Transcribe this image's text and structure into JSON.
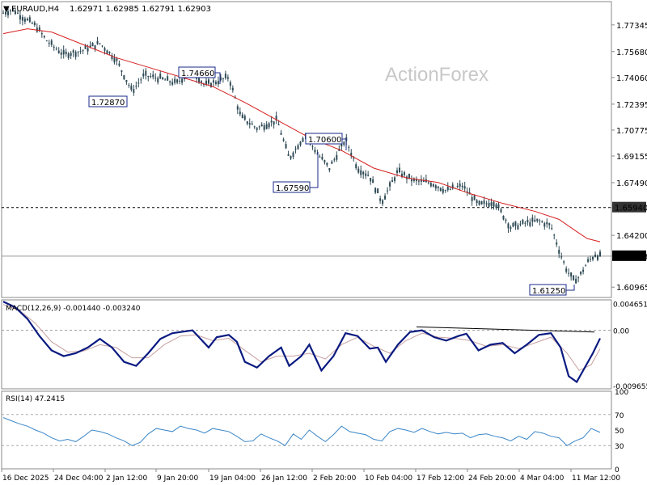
{
  "header": {
    "symbol": "EURAUD,H4",
    "ohlc": "1.62971 1.62985 1.62791 1.62903"
  },
  "watermark": "ActionForex",
  "colors": {
    "candle": "#2e4a55",
    "ma": "#d62020",
    "macd": "#0a1a80",
    "signal": "#c8a0a0",
    "rsi": "#3a86c8",
    "grid": "#888888"
  },
  "chart_data": [
    {
      "type": "candlestick",
      "title": "EURAUD,H4",
      "xlabel": "",
      "ylabel": "",
      "ylim": [
        1.6032,
        1.788
      ],
      "y_ticks": [
        "1.77345",
        "1.75680",
        "1.74060",
        "1.72395",
        "1.70775",
        "1.69155",
        "1.67490",
        "1.65940",
        "1.64200",
        "1.62903",
        "1.60965"
      ],
      "x_ticks": [
        "16 Dec 2025",
        "24 Dec 04:00",
        "2 Jan 12:00",
        "9 Jan 20:00",
        "19 Jan 04:00",
        "26 Jan 12:00",
        "2 Feb 20:00",
        "10 Feb 04:00",
        "17 Feb 12:00",
        "24 Feb 20:00",
        "4 Mar 04:00",
        "11 Mar 12:00"
      ],
      "horizontal_line": {
        "value": 1.6594,
        "label": "1.65940",
        "style": "dashed"
      },
      "current_price": {
        "value": 1.62903,
        "label": "1.62903"
      },
      "annotations": [
        {
          "label": "1.72870",
          "value": 1.7287
        },
        {
          "label": "1.74660",
          "value": 1.7466
        },
        {
          "label": "1.70600",
          "value": 1.706
        },
        {
          "label": "1.67590",
          "value": 1.6759
        },
        {
          "label": "1.61250",
          "value": 1.6125
        }
      ],
      "close_path": [
        [
          0,
          1.781
        ],
        [
          12,
          1.783
        ],
        [
          25,
          1.778
        ],
        [
          40,
          1.773
        ],
        [
          55,
          1.763
        ],
        [
          75,
          1.755
        ],
        [
          95,
          1.757
        ],
        [
          120,
          1.762
        ],
        [
          140,
          1.752
        ],
        [
          160,
          1.732
        ],
        [
          175,
          1.742
        ],
        [
          195,
          1.74
        ],
        [
          215,
          1.737
        ],
        [
          235,
          1.745
        ],
        [
          250,
          1.736
        ],
        [
          265,
          1.738
        ],
        [
          280,
          1.741
        ],
        [
          295,
          1.716
        ],
        [
          315,
          1.709
        ],
        [
          340,
          1.714
        ],
        [
          355,
          1.69
        ],
        [
          375,
          1.705
        ],
        [
          390,
          1.693
        ],
        [
          405,
          1.684
        ],
        [
          425,
          1.702
        ],
        [
          440,
          1.684
        ],
        [
          455,
          1.679
        ],
        [
          470,
          1.663
        ],
        [
          490,
          1.682
        ],
        [
          510,
          1.676
        ],
        [
          530,
          1.675
        ],
        [
          550,
          1.67
        ],
        [
          570,
          1.673
        ],
        [
          590,
          1.661
        ],
        [
          610,
          1.663
        ],
        [
          630,
          1.647
        ],
        [
          650,
          1.65
        ],
        [
          665,
          1.651
        ],
        [
          680,
          1.648
        ],
        [
          692,
          1.63
        ],
        [
          700,
          1.62
        ],
        [
          708,
          1.614
        ],
        [
          715,
          1.616
        ],
        [
          725,
          1.625
        ],
        [
          735,
          1.63
        ],
        [
          741,
          1.629
        ]
      ],
      "ma_path": [
        [
          0,
          1.768
        ],
        [
          30,
          1.771
        ],
        [
          60,
          1.769
        ],
        [
          100,
          1.761
        ],
        [
          140,
          1.753
        ],
        [
          180,
          1.747
        ],
        [
          220,
          1.741
        ],
        [
          260,
          1.735
        ],
        [
          300,
          1.725
        ],
        [
          340,
          1.714
        ],
        [
          380,
          1.703
        ],
        [
          420,
          1.695
        ],
        [
          460,
          1.684
        ],
        [
          500,
          1.678
        ],
        [
          540,
          1.675
        ],
        [
          580,
          1.668
        ],
        [
          620,
          1.662
        ],
        [
          660,
          1.657
        ],
        [
          690,
          1.652
        ],
        [
          710,
          1.645
        ],
        [
          725,
          1.64
        ],
        [
          741,
          1.638
        ]
      ]
    },
    {
      "type": "line",
      "title": "MACD(12,26,9) -0.001440 -0.003240",
      "xlabel": "",
      "ylabel": "",
      "ylim": [
        -0.0102,
        0.0053
      ],
      "y_ticks": [
        "0.004651",
        "0.00",
        "-0.009655"
      ],
      "series": [
        {
          "values": [
            [
              0,
              0.005
            ],
            [
              15,
              0.004
            ],
            [
              30,
              0.002
            ],
            [
              45,
              -0.001
            ],
            [
              60,
              -0.0035
            ],
            [
              75,
              -0.0045
            ],
            [
              90,
              -0.004
            ],
            [
              105,
              -0.003
            ],
            [
              120,
              -0.0015
            ],
            [
              135,
              -0.003
            ],
            [
              150,
              -0.0055
            ],
            [
              165,
              -0.0062
            ],
            [
              180,
              -0.004
            ],
            [
              195,
              -0.0015
            ],
            [
              210,
              -0.0005
            ],
            [
              225,
              -0.0002
            ],
            [
              235,
              0.0
            ],
            [
              245,
              -0.0015
            ],
            [
              255,
              -0.003
            ],
            [
              265,
              -0.0012
            ],
            [
              280,
              -0.0008
            ],
            [
              290,
              -0.002
            ],
            [
              300,
              -0.0055
            ],
            [
              315,
              -0.0065
            ],
            [
              330,
              -0.0045
            ],
            [
              345,
              -0.003
            ],
            [
              355,
              -0.0062
            ],
            [
              370,
              -0.0045
            ],
            [
              380,
              -0.0025
            ],
            [
              395,
              -0.007
            ],
            [
              410,
              -0.0045
            ],
            [
              425,
              -0.0005
            ],
            [
              440,
              -0.001
            ],
            [
              455,
              -0.0032
            ],
            [
              465,
              -0.003
            ],
            [
              475,
              -0.0055
            ],
            [
              490,
              -0.0025
            ],
            [
              505,
              -0.0003
            ],
            [
              520,
              0.0
            ],
            [
              535,
              -0.0012
            ],
            [
              550,
              -0.0018
            ],
            [
              565,
              -0.001
            ],
            [
              575,
              -0.0006
            ],
            [
              590,
              -0.0035
            ],
            [
              605,
              -0.0025
            ],
            [
              620,
              -0.0022
            ],
            [
              635,
              -0.004
            ],
            [
              650,
              -0.0025
            ],
            [
              665,
              -0.0008
            ],
            [
              680,
              -0.0005
            ],
            [
              692,
              -0.003
            ],
            [
              702,
              -0.008
            ],
            [
              712,
              -0.009
            ],
            [
              722,
              -0.0065
            ],
            [
              732,
              -0.004
            ],
            [
              741,
              -0.0014
            ]
          ]
        },
        {
          "values": [
            [
              0,
              0.0045
            ],
            [
              20,
              0.0035
            ],
            [
              40,
              0.0012
            ],
            [
              60,
              -0.002
            ],
            [
              80,
              -0.0038
            ],
            [
              100,
              -0.0036
            ],
            [
              120,
              -0.0025
            ],
            [
              140,
              -0.003
            ],
            [
              160,
              -0.0048
            ],
            [
              180,
              -0.0048
            ],
            [
              200,
              -0.0025
            ],
            [
              220,
              -0.001
            ],
            [
              240,
              -0.0008
            ],
            [
              260,
              -0.0018
            ],
            [
              280,
              -0.0014
            ],
            [
              300,
              -0.0035
            ],
            [
              320,
              -0.0055
            ],
            [
              340,
              -0.0045
            ],
            [
              360,
              -0.0045
            ],
            [
              380,
              -0.004
            ],
            [
              400,
              -0.005
            ],
            [
              420,
              -0.0025
            ],
            [
              440,
              -0.0012
            ],
            [
              460,
              -0.0028
            ],
            [
              480,
              -0.004
            ],
            [
              500,
              -0.0018
            ],
            [
              520,
              -0.0005
            ],
            [
              540,
              -0.0012
            ],
            [
              560,
              -0.0014
            ],
            [
              580,
              -0.0018
            ],
            [
              600,
              -0.0028
            ],
            [
              620,
              -0.0025
            ],
            [
              640,
              -0.0032
            ],
            [
              660,
              -0.0022
            ],
            [
              680,
              -0.0012
            ],
            [
              700,
              -0.004
            ],
            [
              715,
              -0.007
            ],
            [
              730,
              -0.006
            ],
            [
              741,
              -0.0032
            ]
          ]
        }
      ],
      "reference_line": {
        "value": 0.0
      }
    },
    {
      "type": "line",
      "title": "RSI(14) 47.2415",
      "xlabel": "",
      "ylabel": "",
      "ylim": [
        0,
        100
      ],
      "y_ticks": [
        "100",
        "70",
        "50",
        "30",
        "0"
      ],
      "levels": [
        70,
        30
      ],
      "series": [
        {
          "values": [
            [
              0,
              66
            ],
            [
              10,
              62
            ],
            [
              20,
              58
            ],
            [
              30,
              55
            ],
            [
              40,
              50
            ],
            [
              50,
              46
            ],
            [
              60,
              40
            ],
            [
              70,
              36
            ],
            [
              80,
              38
            ],
            [
              90,
              35
            ],
            [
              100,
              42
            ],
            [
              110,
              50
            ],
            [
              120,
              48
            ],
            [
              130,
              45
            ],
            [
              140,
              40
            ],
            [
              150,
              36
            ],
            [
              160,
              30
            ],
            [
              170,
              34
            ],
            [
              180,
              45
            ],
            [
              190,
              52
            ],
            [
              200,
              50
            ],
            [
              210,
              48
            ],
            [
              220,
              55
            ],
            [
              230,
              52
            ],
            [
              240,
              50
            ],
            [
              250,
              46
            ],
            [
              260,
              52
            ],
            [
              270,
              50
            ],
            [
              280,
              48
            ],
            [
              290,
              42
            ],
            [
              300,
              35
            ],
            [
              310,
              36
            ],
            [
              320,
              45
            ],
            [
              330,
              40
            ],
            [
              340,
              36
            ],
            [
              350,
              30
            ],
            [
              360,
              45
            ],
            [
              370,
              38
            ],
            [
              380,
              50
            ],
            [
              390,
              42
            ],
            [
              400,
              35
            ],
            [
              410,
              44
            ],
            [
              420,
              55
            ],
            [
              430,
              48
            ],
            [
              440,
              46
            ],
            [
              450,
              44
            ],
            [
              460,
              38
            ],
            [
              470,
              36
            ],
            [
              480,
              48
            ],
            [
              490,
              52
            ],
            [
              500,
              50
            ],
            [
              510,
              47
            ],
            [
              520,
              52
            ],
            [
              530,
              48
            ],
            [
              540,
              45
            ],
            [
              550,
              47
            ],
            [
              560,
              45
            ],
            [
              570,
              46
            ],
            [
              580,
              40
            ],
            [
              590,
              44
            ],
            [
              600,
              45
            ],
            [
              610,
              42
            ],
            [
              620,
              40
            ],
            [
              630,
              36
            ],
            [
              640,
              42
            ],
            [
              650,
              38
            ],
            [
              660,
              48
            ],
            [
              670,
              46
            ],
            [
              680,
              42
            ],
            [
              690,
              40
            ],
            [
              700,
              30
            ],
            [
              710,
              36
            ],
            [
              720,
              40
            ],
            [
              730,
              52
            ],
            [
              741,
              47
            ]
          ]
        }
      ]
    }
  ]
}
